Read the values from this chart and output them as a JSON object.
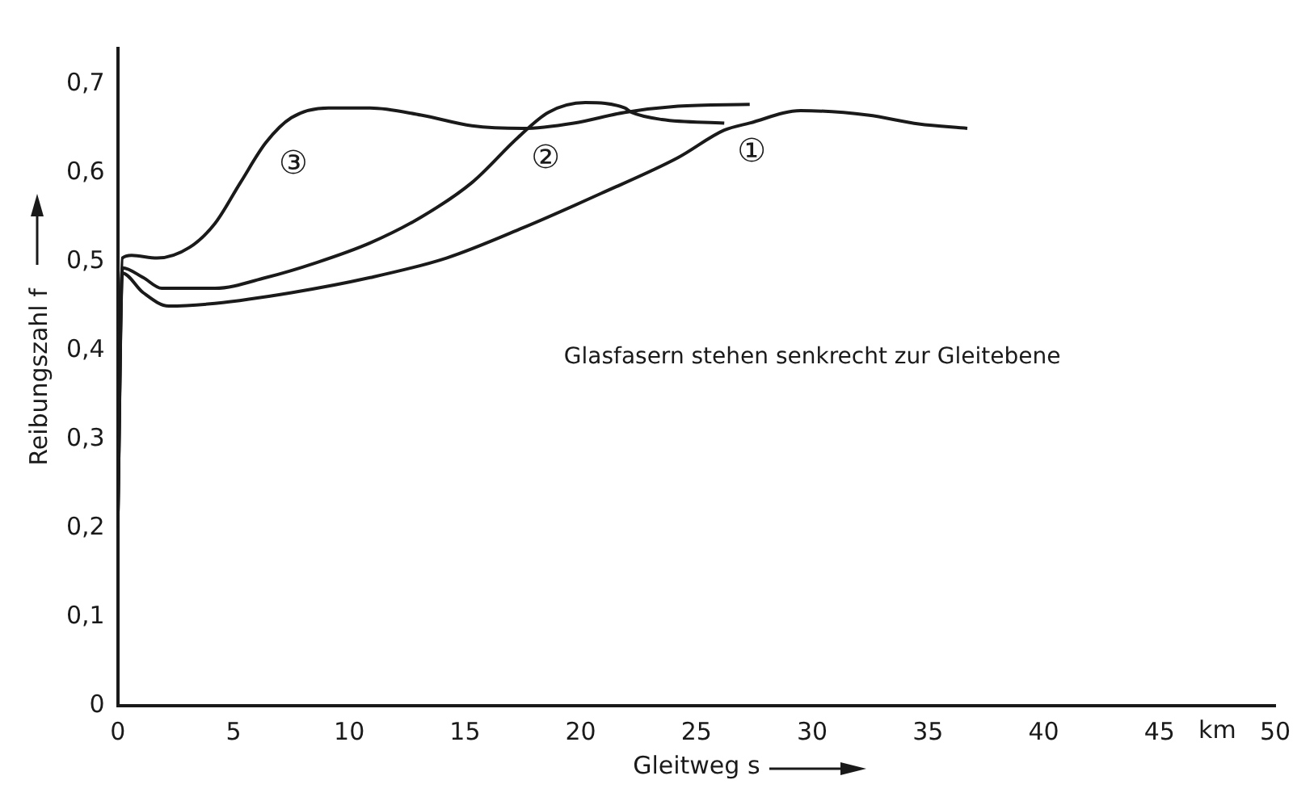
{
  "chart_data": {
    "type": "line",
    "xlabel": "Gleitweg s",
    "ylabel": "Reibungszahl f",
    "xlim": [
      0,
      50
    ],
    "ylim": [
      0,
      0.74
    ],
    "xticks": [
      0,
      5,
      10,
      15,
      20,
      25,
      30,
      35,
      40,
      45,
      50
    ],
    "yticks": [
      0,
      {
        "value": 0.1,
        "label": "0,1"
      },
      {
        "value": 0.2,
        "label": "0,2"
      },
      {
        "value": 0.3,
        "label": "0,3"
      },
      {
        "value": 0.4,
        "label": "0,4"
      },
      {
        "value": 0.5,
        "label": "0,5"
      },
      {
        "value": 0.6,
        "label": "0,6"
      },
      {
        "value": 0.7,
        "label": "0,7"
      }
    ],
    "grid": false,
    "legend": false,
    "marker": "none",
    "line_style": "solid",
    "series": [
      {
        "name": "①",
        "color": "#1a1a1a",
        "x": [
          0,
          0.2,
          1.1,
          2.2,
          4.2,
          7.5,
          10.9,
          14.2,
          17.5,
          20.9,
          24.2,
          26.2,
          27.3,
          29.5,
          32.4,
          34.6,
          36.7
        ],
        "values": [
          0.2,
          0.487,
          0.465,
          0.45,
          0.453,
          0.465,
          0.482,
          0.504,
          0.538,
          0.577,
          0.617,
          0.648,
          0.656,
          0.67,
          0.665,
          0.655,
          0.65
        ]
      },
      {
        "name": "②",
        "color": "#1a1a1a",
        "x": [
          0,
          0.2,
          1.1,
          1.9,
          4.2,
          6.4,
          8.6,
          10.9,
          13.1,
          15.3,
          17.3,
          18.6,
          20.2,
          21.9,
          22.2,
          23.5,
          26.2
        ],
        "values": [
          0.2,
          0.493,
          0.482,
          0.47,
          0.47,
          0.482,
          0.499,
          0.521,
          0.55,
          0.589,
          0.64,
          0.668,
          0.679,
          0.673,
          0.668,
          0.66,
          0.656
        ]
      },
      {
        "name": "③",
        "color": "#1a1a1a",
        "x": [
          0,
          0.2,
          0.6,
          1.7,
          3.1,
          4.2,
          5.3,
          6.4,
          7.5,
          9.1,
          10.9,
          13.1,
          15.3,
          17.5,
          19.7,
          21.9,
          24.2,
          27.3
        ],
        "values": [
          0.2,
          0.504,
          0.507,
          0.504,
          0.516,
          0.543,
          0.589,
          0.634,
          0.662,
          0.673,
          0.673,
          0.665,
          0.653,
          0.65,
          0.656,
          0.668,
          0.675,
          0.677
        ]
      }
    ],
    "annotations": [
      "Glasfasern stehen senkrecht zur Gleitebene",
      "km"
    ]
  }
}
